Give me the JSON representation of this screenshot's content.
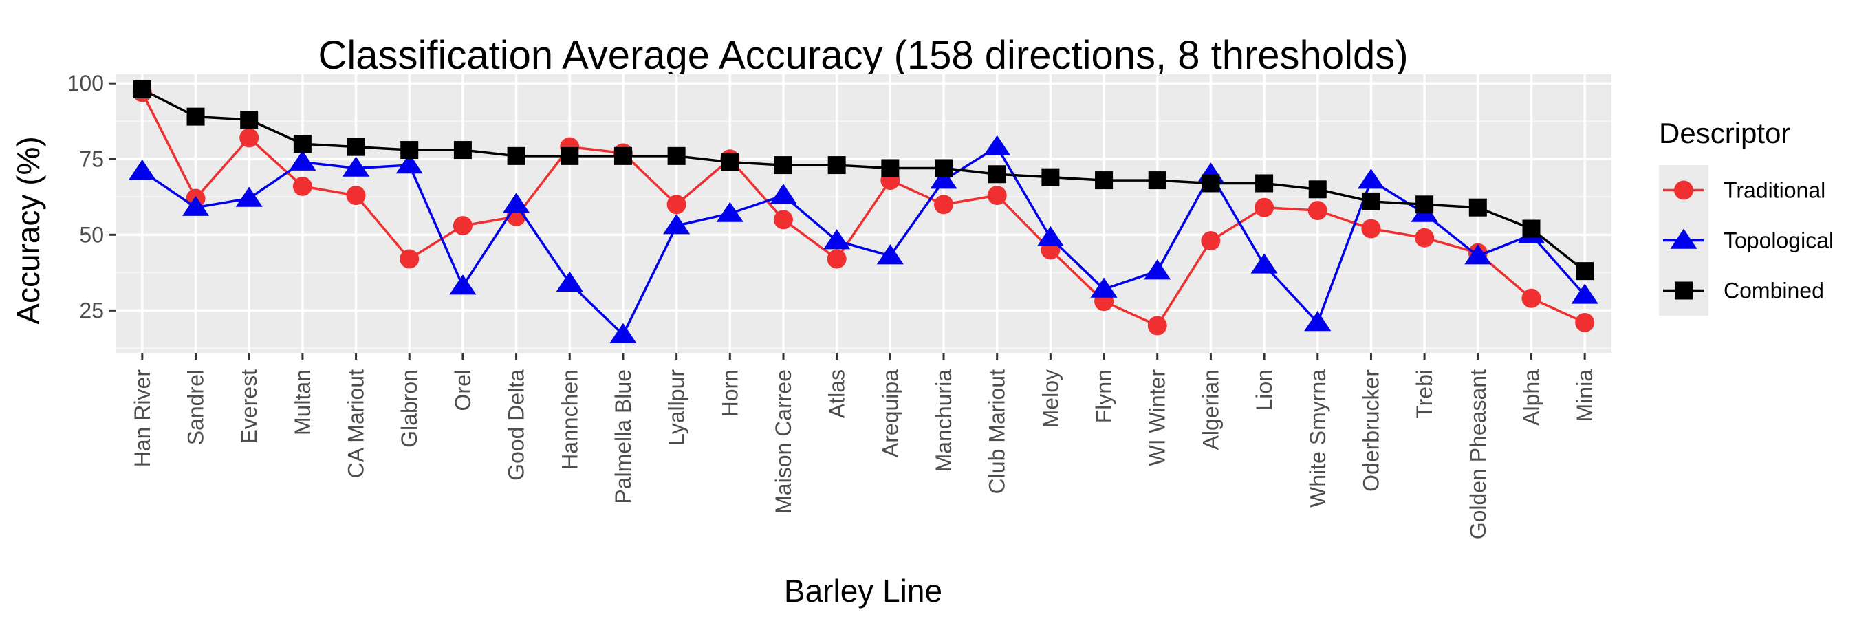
{
  "chart_data": {
    "type": "line",
    "title": "Classification Average Accuracy (158 directions, 8 thresholds)",
    "xlabel": "Barley Line",
    "ylabel": "Accuracy (%)",
    "ylim": [
      11,
      103
    ],
    "yticks": [
      25,
      50,
      75,
      100
    ],
    "grid": true,
    "legend_position": "right",
    "legend_title": "Descriptor",
    "categories": [
      "Han River",
      "Sandrel",
      "Everest",
      "Multan",
      "CA Mariout",
      "Glabron",
      "Orel",
      "Good Delta",
      "Hannchen",
      "Palmella Blue",
      "Lyallpur",
      "Horn",
      "Maison Carree",
      "Atlas",
      "Arequipa",
      "Manchuria",
      "Club Mariout",
      "Meloy",
      "Flynn",
      "WI Winter",
      "Algerian",
      "Lion",
      "White Smyrna",
      "Oderbrucker",
      "Trebi",
      "Golden Pheasant",
      "Alpha",
      "Minia"
    ],
    "series": [
      {
        "name": "Traditional",
        "color": "#f03030",
        "marker": "circle",
        "values": [
          97,
          62,
          82,
          66,
          63,
          42,
          53,
          56,
          79,
          77,
          60,
          75,
          55,
          42,
          68,
          60,
          63,
          45,
          28,
          20,
          48,
          59,
          58,
          52,
          49,
          44,
          29,
          21
        ]
      },
      {
        "name": "Topological",
        "color": "#0000ee",
        "marker": "triangle",
        "values": [
          71,
          59,
          62,
          74,
          72,
          73,
          33,
          60,
          34,
          17,
          53,
          57,
          63,
          48,
          43,
          68,
          79,
          49,
          32,
          38,
          70,
          40,
          21,
          68,
          57,
          43,
          50,
          30
        ]
      },
      {
        "name": "Combined",
        "color": "#000000",
        "marker": "square",
        "values": [
          98,
          89,
          88,
          80,
          79,
          78,
          78,
          76,
          76,
          76,
          76,
          74,
          73,
          73,
          72,
          72,
          70,
          69,
          68,
          68,
          67,
          67,
          65,
          61,
          60,
          59,
          52,
          38
        ]
      }
    ]
  }
}
